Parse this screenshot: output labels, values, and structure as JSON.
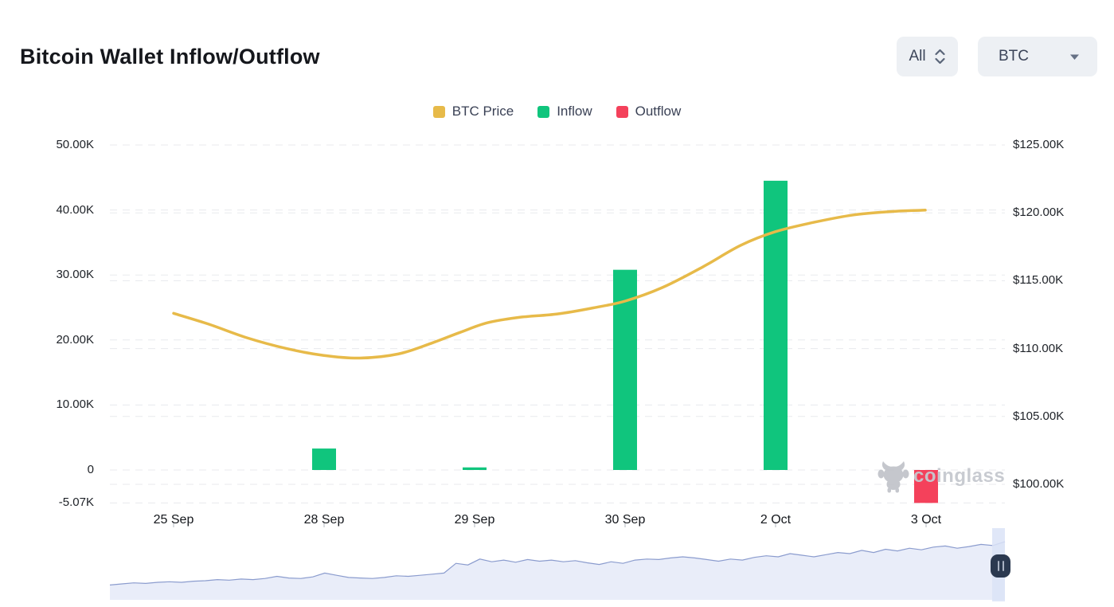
{
  "header": {
    "title": "Bitcoin Wallet Inflow/Outflow"
  },
  "controls": {
    "range_select": {
      "label": "All"
    },
    "symbol_select": {
      "label": "BTC"
    }
  },
  "legend": {
    "items": [
      {
        "label": "BTC Price",
        "color": "#e7ba49"
      },
      {
        "label": "Inflow",
        "color": "#10c57d"
      },
      {
        "label": "Outflow",
        "color": "#f4415b"
      }
    ]
  },
  "watermark": {
    "text": "coinglass"
  },
  "chart_data": {
    "type": "bar+line",
    "title": "Bitcoin Wallet Inflow/Outflow",
    "categories": [
      "25 Sep",
      "28 Sep",
      "29 Sep",
      "30 Sep",
      "2 Oct",
      "3 Oct"
    ],
    "series": [
      {
        "name": "Inflow",
        "type": "bar",
        "color": "#10c57d",
        "unit": "K",
        "values": [
          0,
          3.3,
          0.4,
          30.8,
          44.5,
          0
        ]
      },
      {
        "name": "Outflow",
        "type": "bar",
        "color": "#f4415b",
        "unit": "K",
        "values": [
          0,
          0,
          0,
          0,
          0,
          -5.07
        ]
      },
      {
        "name": "BTC Price",
        "type": "line",
        "color": "#e7ba49",
        "unit": "K USD",
        "values": [
          112.6,
          109.5,
          111.8,
          113.5,
          118.6,
          120.2
        ]
      }
    ],
    "left_axis": {
      "range": [
        -5.07,
        50
      ],
      "ticks": [
        {
          "label": "50.00K",
          "value": 50
        },
        {
          "label": "40.00K",
          "value": 40
        },
        {
          "label": "30.00K",
          "value": 30
        },
        {
          "label": "20.00K",
          "value": 20
        },
        {
          "label": "10.00K",
          "value": 10
        },
        {
          "label": "0",
          "value": 0
        },
        {
          "label": "-5.07K",
          "value": -5.07
        }
      ]
    },
    "right_axis": {
      "range": [
        100,
        125
      ],
      "ticks": [
        {
          "label": "$125.00K",
          "value": 125
        },
        {
          "label": "$120.00K",
          "value": 120
        },
        {
          "label": "$115.00K",
          "value": 115
        },
        {
          "label": "$110.00K",
          "value": 110
        },
        {
          "label": "$105.00K",
          "value": 105
        },
        {
          "label": "$100.00K",
          "value": 100
        }
      ]
    },
    "grid": true,
    "legend_position": "top-center",
    "price_line_samples": [
      [
        218,
        112.6
      ],
      [
        262,
        111.8
      ],
      [
        310,
        110.8
      ],
      [
        360,
        110.0
      ],
      [
        406,
        109.5
      ],
      [
        452,
        109.3
      ],
      [
        500,
        109.6
      ],
      [
        542,
        110.4
      ],
      [
        578,
        111.2
      ],
      [
        612,
        111.9
      ],
      [
        652,
        112.3
      ],
      [
        700,
        112.55
      ],
      [
        745,
        113.0
      ],
      [
        785,
        113.5
      ],
      [
        832,
        114.5
      ],
      [
        882,
        116.0
      ],
      [
        930,
        117.6
      ],
      [
        973,
        118.6
      ],
      [
        1022,
        119.3
      ],
      [
        1072,
        119.85
      ],
      [
        1120,
        120.1
      ],
      [
        1162,
        120.2
      ]
    ],
    "navigator": {
      "values": [
        0.2,
        0.22,
        0.24,
        0.23,
        0.25,
        0.26,
        0.25,
        0.27,
        0.28,
        0.3,
        0.29,
        0.31,
        0.3,
        0.32,
        0.36,
        0.33,
        0.32,
        0.35,
        0.42,
        0.38,
        0.34,
        0.33,
        0.32,
        0.34,
        0.37,
        0.36,
        0.38,
        0.4,
        0.42,
        0.6,
        0.57,
        0.68,
        0.63,
        0.66,
        0.62,
        0.67,
        0.64,
        0.66,
        0.63,
        0.65,
        0.61,
        0.58,
        0.63,
        0.6,
        0.66,
        0.68,
        0.67,
        0.7,
        0.72,
        0.7,
        0.67,
        0.64,
        0.68,
        0.66,
        0.71,
        0.74,
        0.72,
        0.78,
        0.75,
        0.72,
        0.76,
        0.8,
        0.78,
        0.84,
        0.8,
        0.86,
        0.83,
        0.88,
        0.85,
        0.9,
        0.92,
        0.88,
        0.91,
        0.95,
        0.93,
        1.0
      ]
    }
  }
}
